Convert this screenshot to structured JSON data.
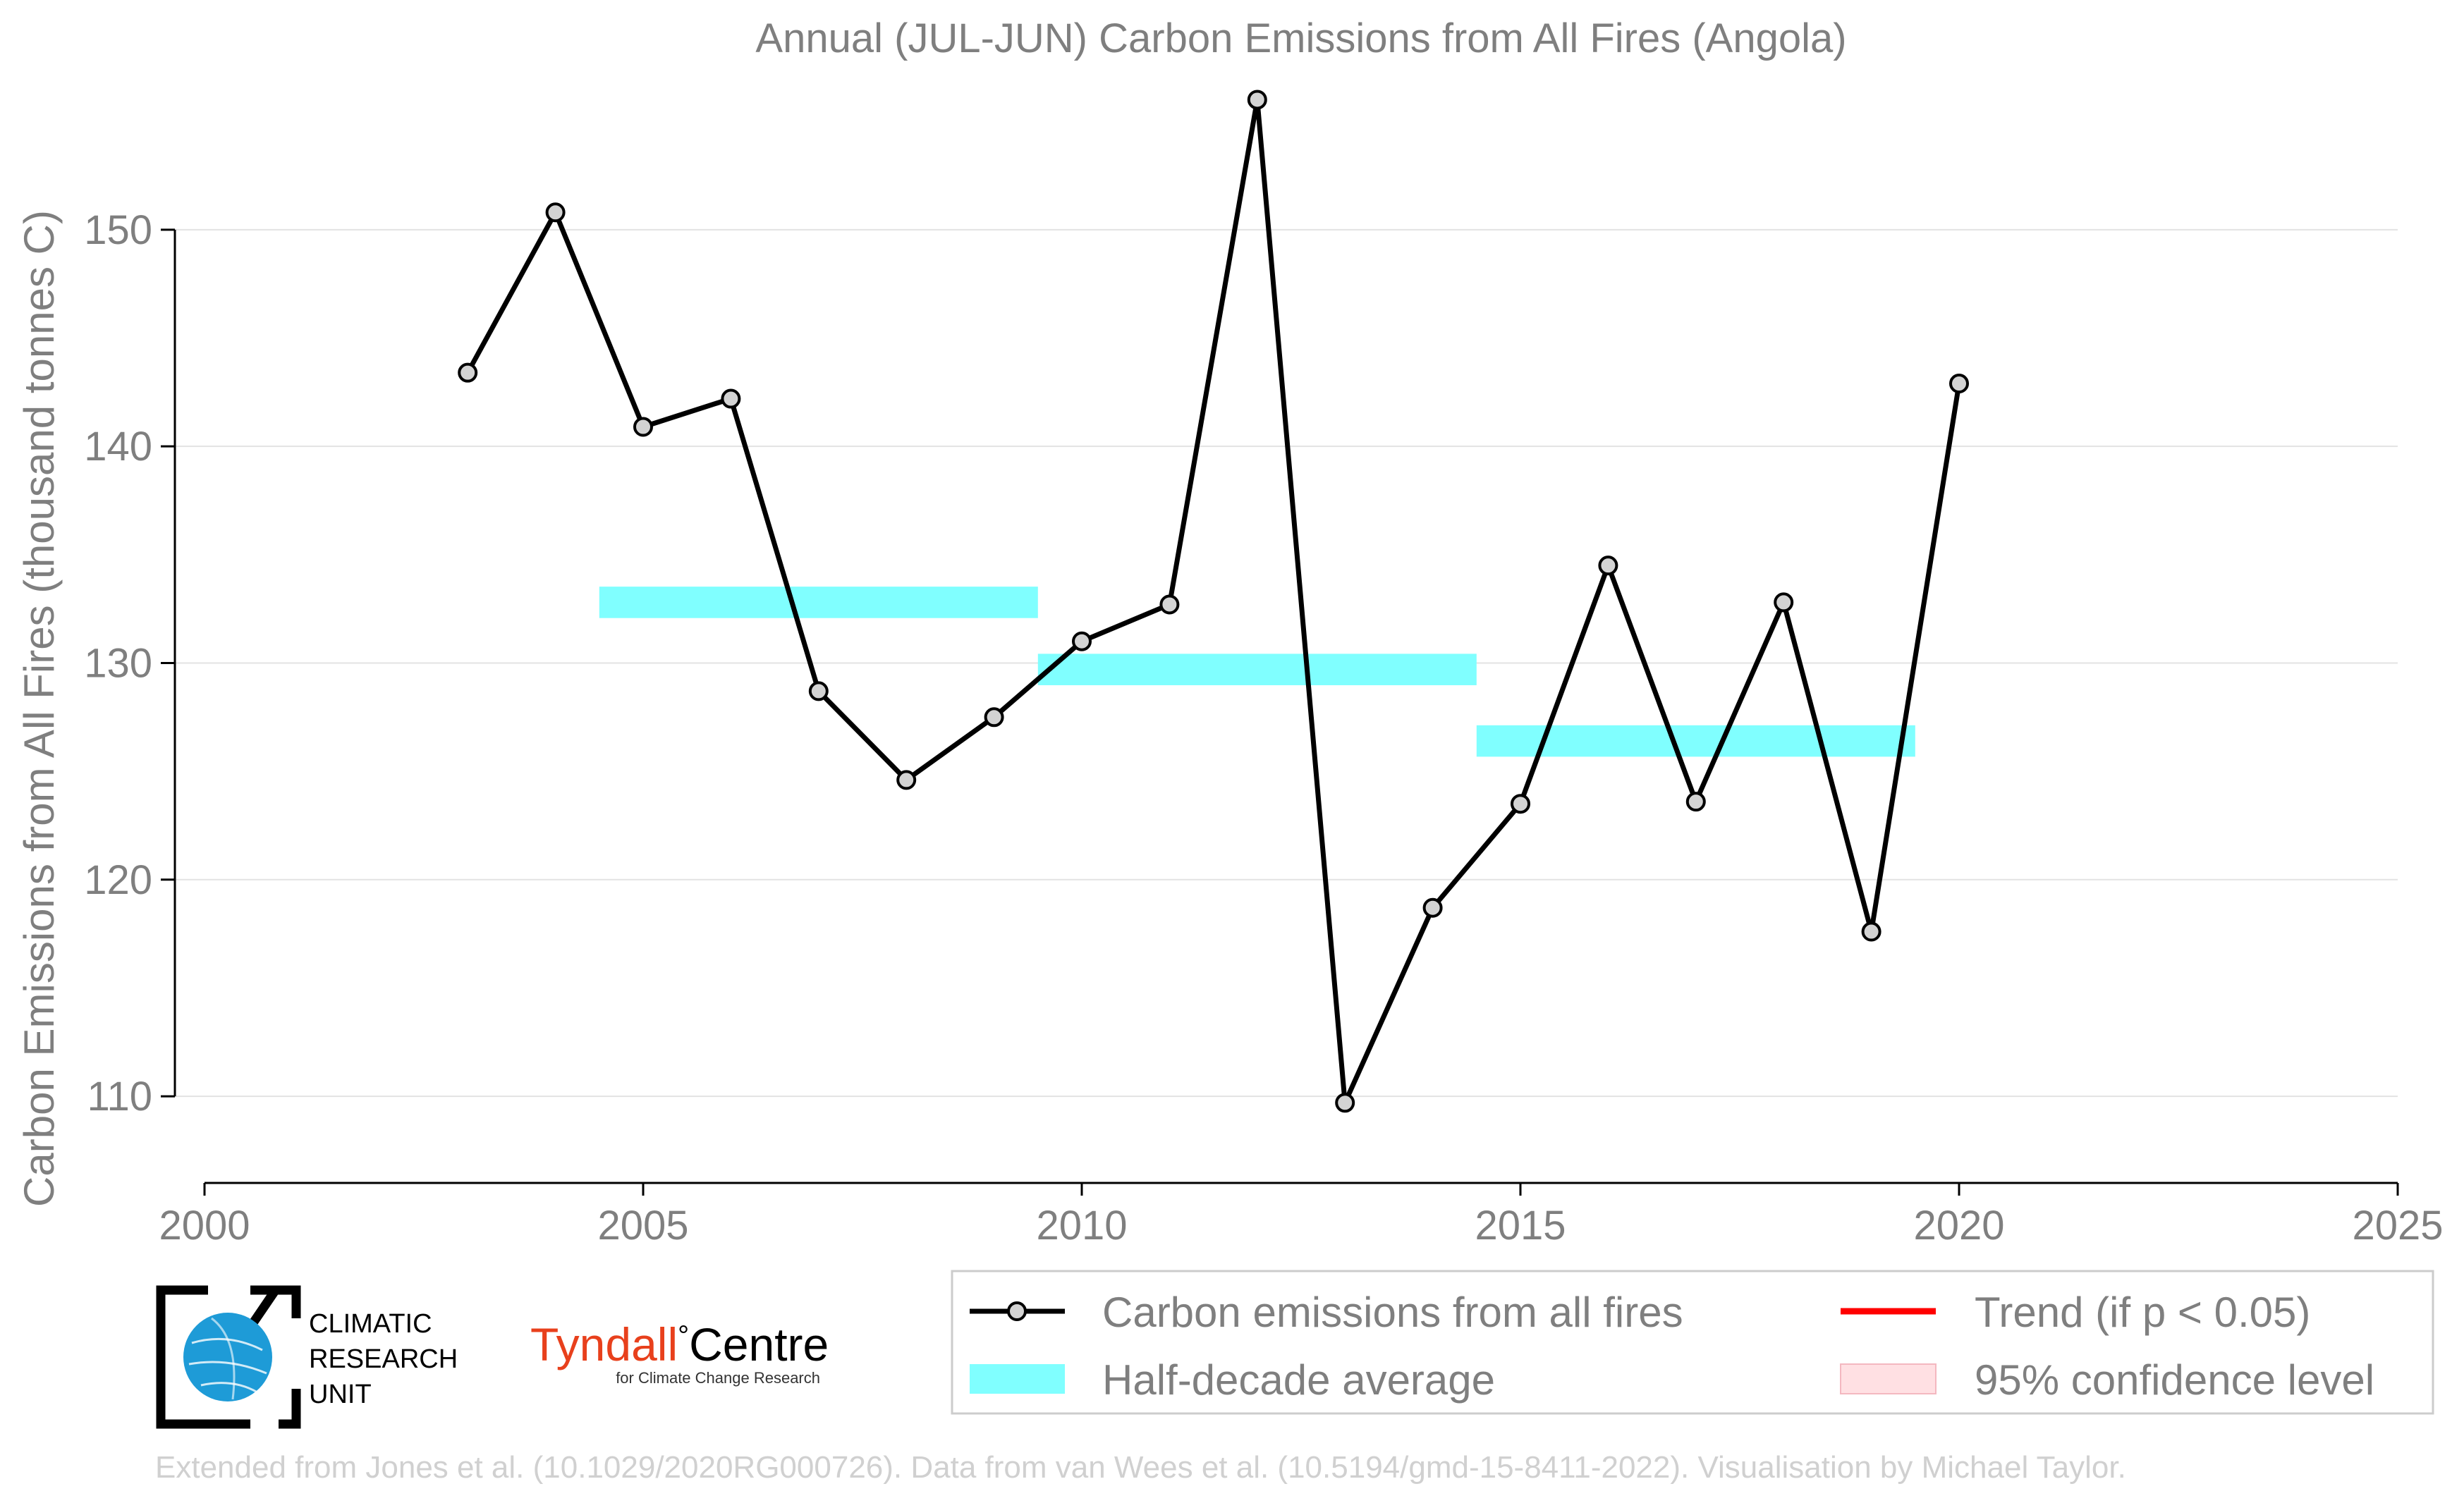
{
  "chart_data": {
    "type": "line",
    "title": "Annual (JUL-JUN) Carbon Emissions from All Fires (Angola)",
    "xlabel": "",
    "ylabel": "Carbon Emissions from All Fires (thousand tonnes C)",
    "xlim": [
      2000,
      2025
    ],
    "ylim": [
      106,
      158
    ],
    "x_ticks": [
      2000,
      2005,
      2010,
      2015,
      2020,
      2025
    ],
    "y_ticks": [
      110,
      120,
      130,
      140,
      150
    ],
    "grid": "horizontal",
    "series": [
      {
        "name": "Carbon emissions from all fires",
        "color": "#000000",
        "marker_color": "#d3d3d3",
        "x": [
          2003,
          2004,
          2005,
          2006,
          2007,
          2008,
          2009,
          2010,
          2011,
          2012,
          2013,
          2014,
          2015,
          2016,
          2017,
          2018,
          2019,
          2020
        ],
        "y": [
          143.4,
          150.8,
          140.9,
          142.2,
          128.7,
          124.6,
          127.5,
          131.0,
          132.7,
          156.0,
          109.7,
          118.7,
          123.5,
          134.5,
          123.6,
          132.8,
          117.6,
          142.9
        ]
      },
      {
        "name": "Half-decade average",
        "color": "#80ffff",
        "segments": [
          {
            "x_start": 2004.5,
            "x_end": 2009.5,
            "y": 132.8
          },
          {
            "x_start": 2009.5,
            "x_end": 2014.5,
            "y": 129.7
          },
          {
            "x_start": 2014.5,
            "x_end": 2019.5,
            "y": 126.4
          }
        ]
      }
    ],
    "legend": {
      "placement": "bottom-right",
      "entries": [
        {
          "label": "Carbon emissions from all fires",
          "kind": "line-marker",
          "color": "#000000"
        },
        {
          "label": "Trend (if p < 0.05)",
          "kind": "line",
          "color": "#ff0000"
        },
        {
          "label": "Half-decade average",
          "kind": "patch",
          "color": "#80ffff"
        },
        {
          "label": "95% confidence level",
          "kind": "patch",
          "color": "#ffe0e3"
        }
      ]
    }
  },
  "logos": {
    "cru": {
      "line1": "CLIMATIC",
      "line2": "RESEARCH",
      "line3": "UNIT",
      "color": "#1e9bd7"
    },
    "tyndall": {
      "name_a": "Tyndall",
      "degree": "°",
      "name_b": "Centre",
      "subtitle": "for Climate Change Research",
      "color": "#e8401c"
    }
  },
  "footer": "Extended from Jones et al. (10.1029/2020RG000726). Data from van Wees et al. (10.5194/gmd-15-8411-2022). Visualisation by Michael Taylor."
}
